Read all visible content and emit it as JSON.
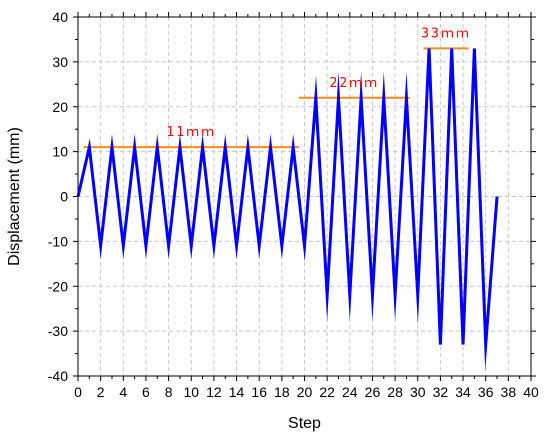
{
  "chart_data": {
    "type": "line",
    "title": "",
    "xlabel": "Step",
    "ylabel": "Displacement (mm)",
    "xlim": [
      0,
      40
    ],
    "ylim": [
      -40,
      40
    ],
    "x_ticks": [
      0,
      2,
      4,
      6,
      8,
      10,
      12,
      14,
      16,
      18,
      20,
      22,
      24,
      26,
      28,
      30,
      32,
      34,
      36,
      38,
      40
    ],
    "y_ticks": [
      -40,
      -30,
      -20,
      -10,
      0,
      10,
      20,
      30,
      40
    ],
    "grid": true,
    "series": [
      {
        "color": "#0000ff",
        "x": [
          0,
          1,
          2,
          3,
          4,
          5,
          6,
          7,
          8,
          9,
          10,
          11,
          12,
          13,
          14,
          15,
          16,
          17,
          18,
          19,
          20,
          21,
          22,
          23,
          24,
          25,
          26,
          27,
          28,
          29,
          30,
          31,
          32,
          33,
          34,
          35,
          36,
          37
        ],
        "y": [
          0,
          11,
          -11,
          11,
          -11,
          11,
          -11,
          11,
          -11,
          11,
          -11,
          11,
          -11,
          11,
          -11,
          11,
          -11,
          11,
          -11,
          11,
          -11,
          22,
          -22,
          22,
          -22,
          22,
          -22,
          22,
          -22,
          22,
          -22,
          33,
          -33,
          33,
          -33,
          33,
          -33,
          0
        ]
      }
    ],
    "annotations": [
      {
        "text": "11ｍｍ",
        "level": 11,
        "x_start": 0.5,
        "x_end": 19.5,
        "color": "#ff8c1a"
      },
      {
        "text": "22ｍｍ",
        "level": 22,
        "x_start": 19.5,
        "x_end": 29.3,
        "color": "#ff8c1a"
      },
      {
        "text": "33ｍｍ",
        "level": 33,
        "x_start": 30.5,
        "x_end": 34.5,
        "color": "#ff8c1a"
      }
    ]
  }
}
